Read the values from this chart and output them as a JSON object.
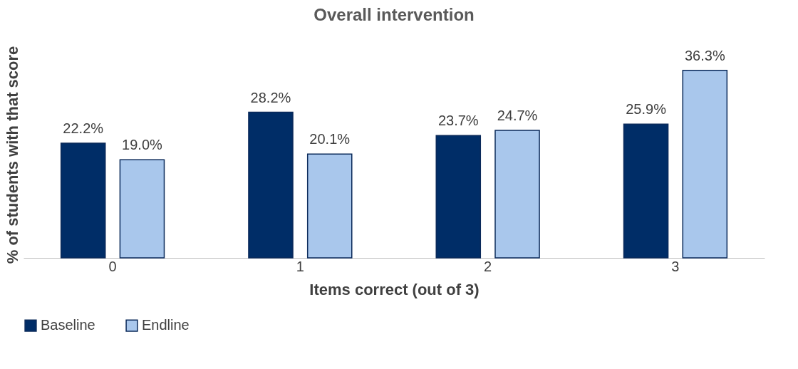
{
  "chart_data": {
    "type": "bar",
    "title": "Overall intervention",
    "xlabel": "Items correct (out of 3)",
    "ylabel": "% of students with that score",
    "categories": [
      "0",
      "1",
      "2",
      "3"
    ],
    "series": [
      {
        "name": "Baseline",
        "color": "#002d67",
        "values": [
          22.2,
          28.2,
          23.7,
          25.9
        ],
        "value_labels": [
          "22.2%",
          "28.2%",
          "23.7%",
          "25.9%"
        ]
      },
      {
        "name": "Endline",
        "color": "#a9c7ec",
        "values": [
          19.0,
          20.1,
          24.7,
          36.3
        ],
        "value_labels": [
          "19.0%",
          "20.1%",
          "24.7%",
          "36.3%"
        ]
      }
    ],
    "legend": "bottom",
    "grid": false,
    "tick_labels": "x"
  }
}
